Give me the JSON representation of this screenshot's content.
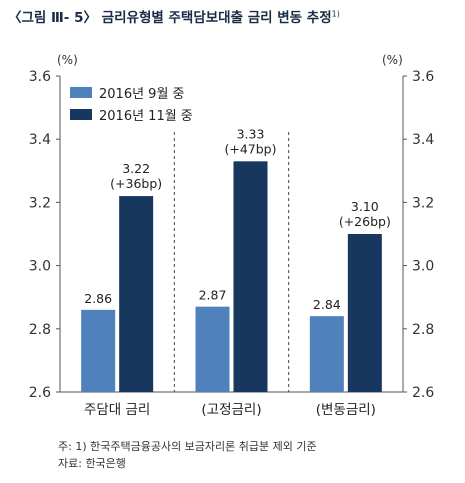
{
  "title": "〈그림 Ⅲ- 5〉 금리유형별 주택담보대출 금리 변동 추정",
  "title_marker": "1)",
  "notes": {
    "note": "주: 1) 한국주택금융공사의 보금자리론 취급분 제외 기준",
    "source": "자료: 한국은행"
  },
  "colors": {
    "series1": "#4f81bd",
    "series2": "#17375e",
    "axis": "#555555"
  },
  "chart_data": {
    "type": "bar",
    "title": "금리유형별 주택담보대출 금리 변동 추정",
    "unit_left": "(%)",
    "unit_right": "(%)",
    "categories": [
      "주담대 금리",
      "(고정금리)",
      "(변동금리)"
    ],
    "series": [
      {
        "name": "2016년 9월 중",
        "values": [
          2.86,
          2.87,
          2.84
        ],
        "labels": [
          "2.86",
          "2.87",
          "2.84"
        ]
      },
      {
        "name": "2016년 11월 중",
        "values": [
          3.22,
          3.33,
          3.1
        ],
        "labels": [
          "3.22",
          "3.33",
          "3.10"
        ],
        "changes": [
          "(+36bp)",
          "(+47bp)",
          "(+26bp)"
        ]
      }
    ],
    "ylim": [
      2.6,
      3.6
    ],
    "yticks": [
      "2.6",
      "2.8",
      "3.0",
      "3.2",
      "3.4",
      "3.6"
    ],
    "grid": false,
    "legend": "top-left",
    "dashed_separators": true
  }
}
